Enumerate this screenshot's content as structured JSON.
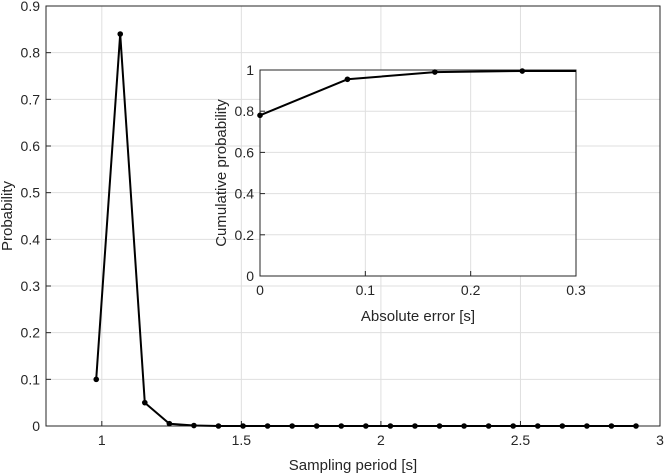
{
  "chart_data": [
    {
      "type": "line",
      "xlabel": "Sampling period [s]",
      "ylabel": "Probability",
      "xlim": [
        0.8,
        3
      ],
      "ylim": [
        0,
        0.9
      ],
      "grid": true,
      "xticks": [
        1,
        1.5,
        2,
        2.5,
        3
      ],
      "xtick_labels": [
        "1",
        "1.5",
        "2",
        "2.5",
        "3"
      ],
      "yticks": [
        0,
        0.1,
        0.2,
        0.3,
        0.4,
        0.5,
        0.6,
        0.7,
        0.8,
        0.9
      ],
      "ytick_labels": [
        "0",
        "0.1",
        "0.2",
        "0.3",
        "0.4",
        "0.5",
        "0.6",
        "0.7",
        "0.8",
        "0.9"
      ],
      "series": [
        {
          "color": "#000000",
          "marker": "dot",
          "x": [
            0.98,
            1.066,
            1.154,
            1.242,
            1.33,
            1.418,
            1.506,
            1.594,
            1.682,
            1.77,
            1.858,
            1.946,
            2.034,
            2.122,
            2.21,
            2.298,
            2.386,
            2.474,
            2.562,
            2.65,
            2.738,
            2.826,
            2.914
          ],
          "y": [
            0.1,
            0.84,
            0.05,
            0.005,
            0.001,
            0,
            0,
            0,
            0,
            0,
            0,
            0,
            0,
            0,
            0,
            0,
            0,
            0,
            0,
            0,
            0,
            0,
            0
          ]
        }
      ]
    },
    {
      "type": "line",
      "xlabel": "Absolute error [s]",
      "ylabel": "Cumulative probability",
      "xlim": [
        0,
        0.3
      ],
      "ylim": [
        0,
        1
      ],
      "grid": true,
      "xticks": [
        0,
        0.1,
        0.2,
        0.3
      ],
      "xtick_labels": [
        "0",
        "0.1",
        "0.2",
        "0.3"
      ],
      "yticks": [
        0,
        0.2,
        0.4,
        0.6,
        0.8,
        1
      ],
      "ytick_labels": [
        "0",
        "0.2",
        "0.4",
        "0.6",
        "0.8",
        "1"
      ],
      "series": [
        {
          "color": "#000000",
          "marker": "dot",
          "x": [
            0,
            0.083,
            0.166,
            0.249,
            0.3
          ],
          "y": [
            0.78,
            0.955,
            0.99,
            0.995,
            0.995
          ],
          "marker_mask": [
            true,
            true,
            true,
            true,
            false
          ]
        }
      ]
    }
  ]
}
